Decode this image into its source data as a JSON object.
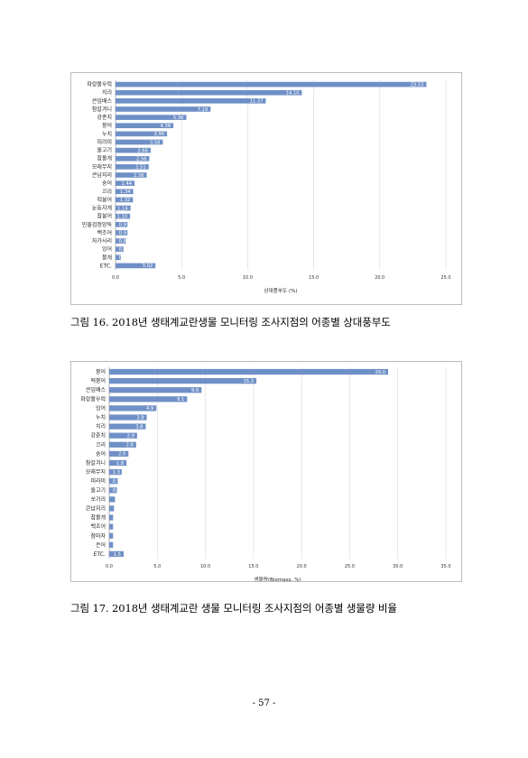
{
  "figures": [
    {
      "caption": "그림 16. 2018년 생태계교란생물 모니터링 조사지점의 어종별 상대풍부도",
      "color": "#6f90c6"
    },
    {
      "caption": "그림 17. 2018년 생태계교란 생물 모니터링 조사지점의 어종별 생물량 비율",
      "color": "#6f90c6"
    }
  ],
  "page_number": "- 57 -",
  "chart_data": [
    {
      "type": "bar",
      "orientation": "horizontal",
      "title": "",
      "xlabel": "상대풍부도 (%)",
      "ylabel": "",
      "xlim": [
        0,
        25
      ],
      "xticks": [
        "0.0",
        "5.0",
        "10.0",
        "15.0",
        "20.0",
        "25.0"
      ],
      "grid": true,
      "legend": "none",
      "categories": [
        "파랑볼우럭",
        "치리",
        "큰입배스",
        "참갈겨니",
        "강준치",
        "붕어",
        "누치",
        "피라미",
        "돌고기",
        "참몰개",
        "모래무지",
        "큰납지리",
        "숭어",
        "끄리",
        "떡붕어",
        "눈동자개",
        "참붕어",
        "민물검정망둑",
        "백조어",
        "자가사리",
        "잉어",
        "블개",
        "ETC."
      ],
      "values": [
        23.53,
        14.1,
        11.37,
        7.19,
        5.36,
        4.38,
        3.9,
        3.58,
        2.66,
        2.56,
        2.51,
        2.36,
        1.44,
        1.34,
        1.32,
        1.14,
        1.1,
        0.9,
        0.9,
        0.8,
        0.6,
        0.4,
        3.02
      ],
      "data_labels": [
        "23.53",
        "14.10",
        "11.37",
        "7.19",
        "5.36",
        "4.38",
        "3.90",
        "3.58",
        "2.66",
        "2.56",
        "2.51",
        "2.36",
        "1.44",
        "1.34",
        "1.32",
        "1.14",
        "1.10",
        "0.9",
        "0.9",
        "0.8",
        "0.6",
        "0.4",
        "3.02"
      ]
    },
    {
      "type": "bar",
      "orientation": "horizontal",
      "title": "",
      "xlabel": "생물량(Biomass, %)",
      "ylabel": "",
      "xlim": [
        0,
        35
      ],
      "xticks": [
        "0.0",
        "5.0",
        "10.0",
        "15.0",
        "20.0",
        "25.0",
        "30.0",
        "35.0"
      ],
      "grid": true,
      "legend": "none",
      "categories": [
        "붕어",
        "떡붕어",
        "큰입배스",
        "파랑볼우럭",
        "잉어",
        "누치",
        "치리",
        "강준치",
        "끄리",
        "숭어",
        "참갈겨니",
        "모래무지",
        "피라미",
        "돌고기",
        "쏘가리",
        "큰납지리",
        "참몰개",
        "백조어",
        "참마자",
        "은어",
        "ETC."
      ],
      "values": [
        29.0,
        15.3,
        9.6,
        8.1,
        4.9,
        3.9,
        3.8,
        2.9,
        2.8,
        2.0,
        1.8,
        1.3,
        0.9,
        0.8,
        0.6,
        0.5,
        0.4,
        0.4,
        0.4,
        0.4,
        1.5
      ],
      "data_labels": [
        "29.0",
        "15.3",
        "9.6",
        "8.1",
        "4.9",
        "3.9",
        "3.8",
        "2.9",
        "2.8",
        "2.0",
        "1.8",
        "1.3",
        "0.9",
        "0.8",
        "",
        "",
        "",
        "",
        "",
        "",
        "1.5"
      ]
    }
  ]
}
